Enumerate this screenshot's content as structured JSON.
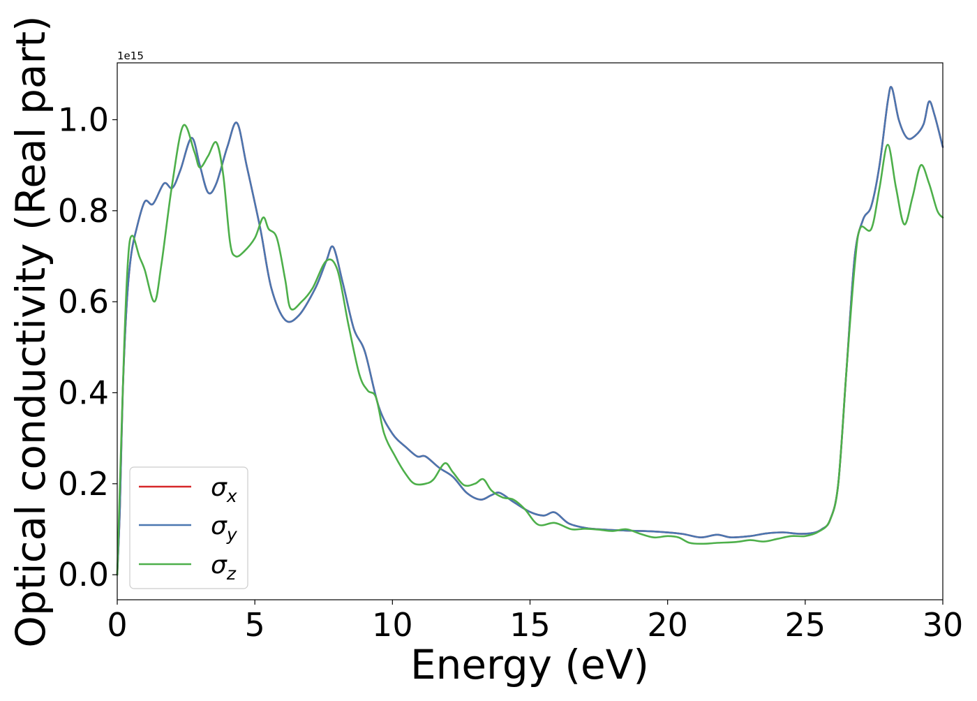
{
  "chart_data": {
    "type": "line",
    "xlabel": "Energy (eV)",
    "ylabel": "Optical conductivity (Real part)",
    "offset_text": "1e15",
    "xlim": [
      0,
      30
    ],
    "ylim": [
      -0.055,
      1.125
    ],
    "y_scale_exponent": 15,
    "x_ticks": [
      0,
      5,
      10,
      15,
      20,
      25,
      30
    ],
    "y_ticks": [
      0.0,
      0.2,
      0.4,
      0.6,
      0.8,
      1.0
    ],
    "x_tick_labels": [
      "0",
      "5",
      "10",
      "15",
      "20",
      "25",
      "30"
    ],
    "y_tick_labels": [
      "0.0",
      "0.2",
      "0.4",
      "0.6",
      "0.8",
      "1.0"
    ],
    "grid": false,
    "legend_position": "lower-left",
    "series": [
      {
        "name": "σx",
        "label_base": "σ",
        "label_sub": "x",
        "color": "#d62728",
        "points": [
          [
            0,
            0.0
          ],
          [
            0.1,
            0.15
          ],
          [
            0.2,
            0.4
          ],
          [
            0.35,
            0.6
          ],
          [
            0.5,
            0.7
          ],
          [
            0.7,
            0.76
          ],
          [
            1.0,
            0.82
          ],
          [
            1.3,
            0.815
          ],
          [
            1.7,
            0.86
          ],
          [
            2.0,
            0.85
          ],
          [
            2.3,
            0.89
          ],
          [
            2.7,
            0.96
          ],
          [
            3.0,
            0.9
          ],
          [
            3.3,
            0.84
          ],
          [
            3.6,
            0.86
          ],
          [
            4.0,
            0.94
          ],
          [
            4.35,
            0.993
          ],
          [
            4.7,
            0.9
          ],
          [
            5.2,
            0.76
          ],
          [
            5.6,
            0.63
          ],
          [
            6.1,
            0.56
          ],
          [
            6.6,
            0.57
          ],
          [
            7.2,
            0.63
          ],
          [
            7.6,
            0.69
          ],
          [
            7.85,
            0.72
          ],
          [
            8.2,
            0.64
          ],
          [
            8.6,
            0.54
          ],
          [
            9.0,
            0.49
          ],
          [
            9.5,
            0.37
          ],
          [
            10.0,
            0.31
          ],
          [
            10.5,
            0.28
          ],
          [
            10.9,
            0.26
          ],
          [
            11.2,
            0.26
          ],
          [
            11.7,
            0.235
          ],
          [
            12.2,
            0.215
          ],
          [
            12.7,
            0.18
          ],
          [
            13.2,
            0.165
          ],
          [
            13.6,
            0.175
          ],
          [
            13.9,
            0.18
          ],
          [
            14.4,
            0.16
          ],
          [
            15.0,
            0.138
          ],
          [
            15.5,
            0.13
          ],
          [
            15.9,
            0.137
          ],
          [
            16.4,
            0.113
          ],
          [
            17.0,
            0.103
          ],
          [
            17.5,
            0.1
          ],
          [
            18.5,
            0.097
          ],
          [
            19.5,
            0.095
          ],
          [
            20.5,
            0.09
          ],
          [
            21.2,
            0.082
          ],
          [
            21.8,
            0.088
          ],
          [
            22.3,
            0.082
          ],
          [
            23.0,
            0.085
          ],
          [
            23.6,
            0.091
          ],
          [
            24.2,
            0.093
          ],
          [
            24.8,
            0.09
          ],
          [
            25.3,
            0.092
          ],
          [
            25.6,
            0.1
          ],
          [
            25.9,
            0.12
          ],
          [
            26.2,
            0.2
          ],
          [
            26.5,
            0.45
          ],
          [
            26.8,
            0.7
          ],
          [
            27.1,
            0.78
          ],
          [
            27.4,
            0.81
          ],
          [
            27.7,
            0.9
          ],
          [
            28.0,
            1.04
          ],
          [
            28.15,
            1.07
          ],
          [
            28.4,
            1.0
          ],
          [
            28.7,
            0.96
          ],
          [
            29.0,
            0.965
          ],
          [
            29.3,
            0.99
          ],
          [
            29.5,
            1.04
          ],
          [
            29.7,
            1.01
          ],
          [
            30.0,
            0.94
          ]
        ]
      },
      {
        "name": "σy",
        "label_base": "σ",
        "label_sub": "y",
        "color": "#4a76b0",
        "points": [
          [
            0,
            0.0
          ],
          [
            0.1,
            0.15
          ],
          [
            0.2,
            0.4
          ],
          [
            0.35,
            0.6
          ],
          [
            0.5,
            0.7
          ],
          [
            0.7,
            0.76
          ],
          [
            1.0,
            0.82
          ],
          [
            1.3,
            0.815
          ],
          [
            1.7,
            0.86
          ],
          [
            2.0,
            0.85
          ],
          [
            2.3,
            0.89
          ],
          [
            2.7,
            0.96
          ],
          [
            3.0,
            0.9
          ],
          [
            3.3,
            0.84
          ],
          [
            3.6,
            0.86
          ],
          [
            4.0,
            0.94
          ],
          [
            4.35,
            0.993
          ],
          [
            4.7,
            0.9
          ],
          [
            5.2,
            0.76
          ],
          [
            5.6,
            0.63
          ],
          [
            6.1,
            0.56
          ],
          [
            6.6,
            0.57
          ],
          [
            7.2,
            0.63
          ],
          [
            7.6,
            0.69
          ],
          [
            7.85,
            0.72
          ],
          [
            8.2,
            0.64
          ],
          [
            8.6,
            0.54
          ],
          [
            9.0,
            0.49
          ],
          [
            9.5,
            0.37
          ],
          [
            10.0,
            0.31
          ],
          [
            10.5,
            0.28
          ],
          [
            10.9,
            0.26
          ],
          [
            11.2,
            0.26
          ],
          [
            11.7,
            0.235
          ],
          [
            12.2,
            0.215
          ],
          [
            12.7,
            0.18
          ],
          [
            13.2,
            0.165
          ],
          [
            13.6,
            0.175
          ],
          [
            13.9,
            0.18
          ],
          [
            14.4,
            0.16
          ],
          [
            15.0,
            0.138
          ],
          [
            15.5,
            0.13
          ],
          [
            15.9,
            0.137
          ],
          [
            16.4,
            0.113
          ],
          [
            17.0,
            0.103
          ],
          [
            17.5,
            0.1
          ],
          [
            18.5,
            0.097
          ],
          [
            19.5,
            0.095
          ],
          [
            20.5,
            0.09
          ],
          [
            21.2,
            0.082
          ],
          [
            21.8,
            0.088
          ],
          [
            22.3,
            0.082
          ],
          [
            23.0,
            0.085
          ],
          [
            23.6,
            0.091
          ],
          [
            24.2,
            0.093
          ],
          [
            24.8,
            0.09
          ],
          [
            25.3,
            0.092
          ],
          [
            25.6,
            0.1
          ],
          [
            25.9,
            0.12
          ],
          [
            26.2,
            0.2
          ],
          [
            26.5,
            0.45
          ],
          [
            26.8,
            0.7
          ],
          [
            27.1,
            0.78
          ],
          [
            27.4,
            0.81
          ],
          [
            27.7,
            0.9
          ],
          [
            28.0,
            1.04
          ],
          [
            28.15,
            1.07
          ],
          [
            28.4,
            1.0
          ],
          [
            28.7,
            0.96
          ],
          [
            29.0,
            0.965
          ],
          [
            29.3,
            0.99
          ],
          [
            29.5,
            1.04
          ],
          [
            29.7,
            1.01
          ],
          [
            30.0,
            0.94
          ]
        ]
      },
      {
        "name": "σz",
        "label_base": "σ",
        "label_sub": "z",
        "color": "#4daf4a",
        "points": [
          [
            0,
            0.0
          ],
          [
            0.1,
            0.2
          ],
          [
            0.25,
            0.5
          ],
          [
            0.4,
            0.7
          ],
          [
            0.55,
            0.745
          ],
          [
            0.8,
            0.7
          ],
          [
            1.0,
            0.67
          ],
          [
            1.35,
            0.6
          ],
          [
            1.6,
            0.68
          ],
          [
            2.0,
            0.86
          ],
          [
            2.4,
            0.987
          ],
          [
            2.8,
            0.93
          ],
          [
            3.0,
            0.895
          ],
          [
            3.3,
            0.92
          ],
          [
            3.6,
            0.95
          ],
          [
            3.85,
            0.88
          ],
          [
            4.1,
            0.73
          ],
          [
            4.3,
            0.7
          ],
          [
            4.6,
            0.71
          ],
          [
            5.0,
            0.74
          ],
          [
            5.3,
            0.785
          ],
          [
            5.5,
            0.76
          ],
          [
            5.8,
            0.74
          ],
          [
            6.1,
            0.65
          ],
          [
            6.3,
            0.585
          ],
          [
            6.7,
            0.6
          ],
          [
            7.1,
            0.63
          ],
          [
            7.6,
            0.69
          ],
          [
            8.0,
            0.67
          ],
          [
            8.4,
            0.55
          ],
          [
            8.8,
            0.44
          ],
          [
            9.1,
            0.405
          ],
          [
            9.4,
            0.39
          ],
          [
            9.7,
            0.31
          ],
          [
            10.1,
            0.26
          ],
          [
            10.5,
            0.22
          ],
          [
            10.8,
            0.2
          ],
          [
            11.2,
            0.2
          ],
          [
            11.5,
            0.21
          ],
          [
            11.9,
            0.245
          ],
          [
            12.2,
            0.225
          ],
          [
            12.6,
            0.197
          ],
          [
            13.0,
            0.2
          ],
          [
            13.3,
            0.21
          ],
          [
            13.6,
            0.185
          ],
          [
            14.0,
            0.17
          ],
          [
            14.4,
            0.165
          ],
          [
            14.8,
            0.145
          ],
          [
            15.3,
            0.11
          ],
          [
            15.9,
            0.114
          ],
          [
            16.5,
            0.1
          ],
          [
            17.0,
            0.101
          ],
          [
            17.5,
            0.099
          ],
          [
            18.0,
            0.096
          ],
          [
            18.5,
            0.1
          ],
          [
            19.0,
            0.09
          ],
          [
            19.5,
            0.082
          ],
          [
            20.0,
            0.085
          ],
          [
            20.4,
            0.082
          ],
          [
            20.8,
            0.07
          ],
          [
            21.3,
            0.068
          ],
          [
            21.8,
            0.07
          ],
          [
            22.5,
            0.072
          ],
          [
            23.0,
            0.076
          ],
          [
            23.5,
            0.073
          ],
          [
            24.0,
            0.079
          ],
          [
            24.5,
            0.085
          ],
          [
            25.0,
            0.085
          ],
          [
            25.5,
            0.095
          ],
          [
            25.9,
            0.12
          ],
          [
            26.2,
            0.2
          ],
          [
            26.5,
            0.45
          ],
          [
            26.8,
            0.68
          ],
          [
            27.0,
            0.762
          ],
          [
            27.4,
            0.76
          ],
          [
            27.7,
            0.85
          ],
          [
            28.0,
            0.945
          ],
          [
            28.3,
            0.85
          ],
          [
            28.6,
            0.77
          ],
          [
            28.9,
            0.83
          ],
          [
            29.2,
            0.9
          ],
          [
            29.5,
            0.86
          ],
          [
            29.8,
            0.8
          ],
          [
            30.0,
            0.785
          ]
        ]
      }
    ]
  }
}
